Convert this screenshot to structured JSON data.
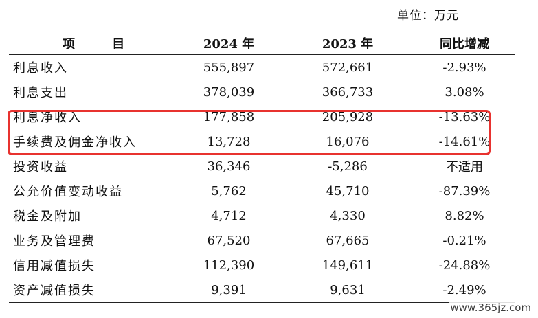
{
  "unit_label": "单位：万元",
  "headers": {
    "item": "项 目",
    "y2024": "2024 年",
    "y2023": "2023 年",
    "yoy": "同比增减"
  },
  "rows": [
    {
      "item": "利息收入",
      "y2024": "555,897",
      "y2023": "572,661",
      "yoy": "-2.93%"
    },
    {
      "item": "利息支出",
      "y2024": "378,039",
      "y2023": "366,733",
      "yoy": "3.08%"
    },
    {
      "item": "利息净收入",
      "y2024": "177,858",
      "y2023": "205,928",
      "yoy": "-13.63%"
    },
    {
      "item": "手续费及佣金净收入",
      "y2024": "13,728",
      "y2023": "16,076",
      "yoy": "-14.61%"
    },
    {
      "item": "投资收益",
      "y2024": "36,346",
      "y2023": "-5,286",
      "yoy": "不适用"
    },
    {
      "item": "公允价值变动收益",
      "y2024": "5,762",
      "y2023": "45,710",
      "yoy": "-87.39%"
    },
    {
      "item": "税金及附加",
      "y2024": "4,712",
      "y2023": "4,330",
      "yoy": "8.82%"
    },
    {
      "item": "业务及管理费",
      "y2024": "67,520",
      "y2023": "67,665",
      "yoy": "-0.21%"
    },
    {
      "item": "信用减值损失",
      "y2024": "112,390",
      "y2023": "149,611",
      "yoy": "-24.88%"
    },
    {
      "item": "资产减值损失",
      "y2024": "9,391",
      "y2023": "9,631",
      "yoy": "-2.49%"
    }
  ],
  "highlight_color": "#e8322f",
  "watermark": "www.365jz.com"
}
